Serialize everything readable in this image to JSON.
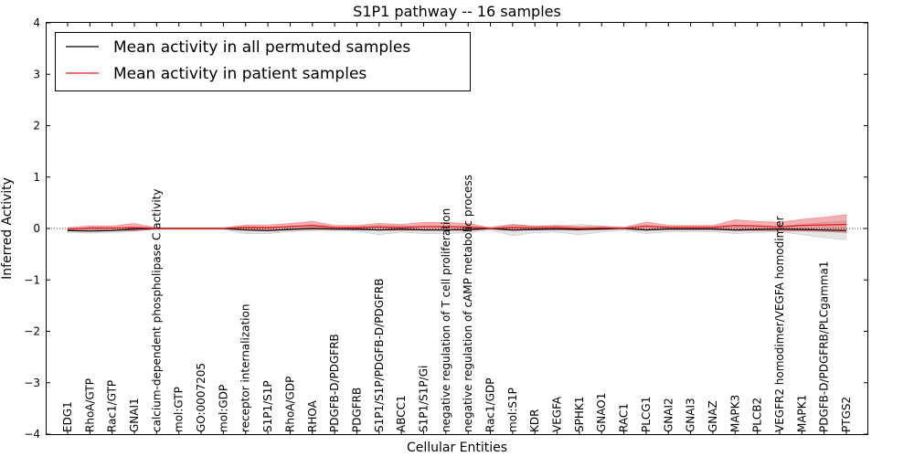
{
  "chart_data": {
    "type": "line",
    "title": "S1P1 pathway -- 16 samples",
    "xlabel": "Cellular Entities",
    "ylabel": "Inferred Activity",
    "ylim": [
      -4,
      4
    ],
    "yticks": [
      4,
      3,
      2,
      1,
      0,
      -1,
      -2,
      -3,
      -4
    ],
    "ytick_labels": [
      "4",
      "3",
      "2",
      "1",
      "0",
      "−1",
      "−2",
      "−3",
      "−4"
    ],
    "legend": {
      "location": "upper-left",
      "entries": [
        {
          "label": "Mean activity in all permuted samples",
          "color": "#000000"
        },
        {
          "label": "Mean activity in patient samples",
          "color": "#e41a1c"
        }
      ]
    },
    "categories": [
      "EDG1",
      "RhoA/GTP",
      "Rac1/GTP",
      "GNAI1",
      "calcium-dependent phospholipase C activity",
      "mol:GTP",
      "GO:0007205",
      "mol:GDP",
      "receptor internalization",
      "S1P1/S1P",
      "RhoA/GDP",
      "RHOA",
      "PDGFB-D/PDGFRB",
      "PDGFRB",
      "S1P1/S1P/PDGFB-D/PDGFRB",
      "ABCC1",
      "S1P1/S1P/Gi",
      "negative regulation of T cell proliferation",
      "negative regulation of cAMP metabolic process",
      "Rac1/GDP",
      "mol:S1P",
      "KDR",
      "VEGFA",
      "SPHK1",
      "GNAO1",
      "RAC1",
      "PLCG1",
      "GNAI2",
      "GNAI3",
      "GNAZ",
      "MAPK3",
      "PLCB2",
      "VEGFR2 homodimer/VEGFA homodimer",
      "MAPK1",
      "PDGFB-D/PDGFRB/PLCgamma1",
      "PTGS2"
    ],
    "series": [
      {
        "name": "Mean activity in all permuted samples",
        "color": "#000000",
        "values": [
          -0.04,
          -0.05,
          -0.04,
          -0.01,
          0,
          0,
          0,
          0,
          -0.03,
          -0.04,
          -0.02,
          0,
          -0.01,
          -0.01,
          -0.03,
          -0.01,
          -0.03,
          -0.03,
          -0.02,
          0,
          -0.03,
          -0.02,
          -0.01,
          -0.02,
          -0.01,
          0,
          -0.03,
          -0.01,
          -0.01,
          -0.01,
          -0.03,
          -0.02,
          -0.01,
          -0.02,
          -0.03,
          -0.04
        ],
        "band_lower": [
          -0.08,
          -0.09,
          -0.08,
          -0.05,
          -0.02,
          -0.02,
          -0.02,
          -0.02,
          -0.1,
          -0.1,
          -0.06,
          -0.04,
          -0.04,
          -0.05,
          -0.12,
          -0.07,
          -0.1,
          -0.1,
          -0.08,
          -0.03,
          -0.14,
          -0.08,
          -0.07,
          -0.12,
          -0.07,
          -0.03,
          -0.1,
          -0.06,
          -0.06,
          -0.06,
          -0.1,
          -0.08,
          -0.06,
          -0.12,
          -0.18,
          -0.22
        ],
        "band_upper": [
          0,
          -0.01,
          0,
          0.03,
          0.02,
          0.02,
          0.02,
          0.02,
          0.04,
          0.02,
          0.02,
          0.04,
          0.02,
          0.03,
          0.06,
          0.05,
          0.04,
          0.04,
          0.04,
          0.03,
          0.08,
          0.04,
          0.05,
          0.08,
          0.05,
          0.03,
          0.04,
          0.04,
          0.04,
          0.04,
          0.04,
          0.04,
          0.04,
          0.08,
          0.12,
          0.14
        ]
      },
      {
        "name": "Mean activity in patient samples",
        "color": "#e41a1c",
        "values": [
          -0.02,
          0.01,
          0.01,
          0.02,
          0,
          0,
          0,
          0,
          0.02,
          0.02,
          0.04,
          0.06,
          0.02,
          0.02,
          0.03,
          0.02,
          0.04,
          0.04,
          0.03,
          0,
          0.02,
          0.01,
          0.02,
          0,
          0.01,
          0,
          0.05,
          0.02,
          0.02,
          0.02,
          0.06,
          0.05,
          0.03,
          0.06,
          0.07,
          0.08
        ],
        "band_lower": [
          -0.05,
          -0.03,
          -0.03,
          -0.05,
          -0.01,
          -0.01,
          -0.01,
          -0.01,
          -0.02,
          -0.03,
          -0.02,
          -0.02,
          -0.02,
          -0.03,
          -0.03,
          -0.04,
          -0.03,
          -0.03,
          -0.04,
          -0.01,
          -0.04,
          -0.02,
          -0.02,
          -0.03,
          -0.02,
          -0.01,
          -0.02,
          -0.02,
          -0.02,
          -0.02,
          -0.04,
          -0.04,
          -0.05,
          -0.05,
          -0.06,
          -0.08
        ],
        "band_upper": [
          0.02,
          0.05,
          0.05,
          0.1,
          0.01,
          0.01,
          0.01,
          0.01,
          0.07,
          0.07,
          0.1,
          0.14,
          0.06,
          0.06,
          0.1,
          0.08,
          0.12,
          0.12,
          0.1,
          0.01,
          0.08,
          0.05,
          0.06,
          0.04,
          0.04,
          0.02,
          0.13,
          0.06,
          0.06,
          0.06,
          0.17,
          0.14,
          0.12,
          0.18,
          0.22,
          0.27
        ]
      }
    ]
  }
}
